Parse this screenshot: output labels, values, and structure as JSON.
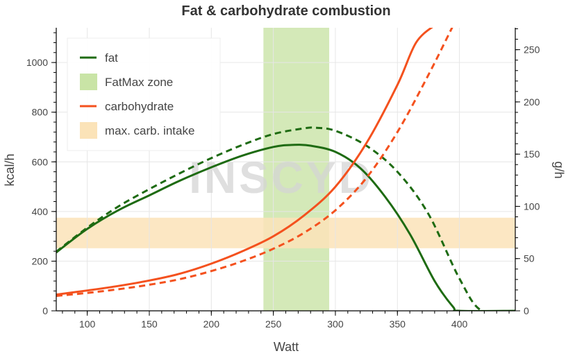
{
  "chart_data": {
    "type": "line",
    "title": "Fat & carbohydrate combustion",
    "xlabel": "Watt",
    "ylabel_left": "kcal/h",
    "ylabel_right": "g/h",
    "xlim": [
      75,
      445
    ],
    "ylim_left": [
      0,
      1140
    ],
    "ylim_right": [
      0,
      271
    ],
    "x_ticks": [
      100,
      150,
      200,
      250,
      300,
      350,
      400
    ],
    "y_ticks_left": [
      0,
      200,
      400,
      600,
      800,
      1000
    ],
    "y_ticks_right": [
      0,
      50,
      100,
      150,
      200,
      250
    ],
    "grid": true,
    "legend_position": "top-left",
    "watermark": "INSCYD",
    "legend": [
      {
        "label": "fat",
        "kind": "line",
        "color": "#1e6b12"
      },
      {
        "label": "FatMax zone",
        "kind": "band",
        "color": "#c9e4a6"
      },
      {
        "label": "carbohydrate",
        "kind": "line",
        "color": "#f4511e"
      },
      {
        "label": "max. carb. intake",
        "kind": "band",
        "color": "#fbe3b8"
      }
    ],
    "series": [
      {
        "name": "fat",
        "style": "solid",
        "color": "#1e6b12",
        "x": [
          75,
          100,
          125,
          150,
          175,
          200,
          225,
          250,
          265,
          280,
          300,
          320,
          340,
          360,
          380,
          395,
          400,
          445
        ],
        "y": [
          235,
          330,
          405,
          465,
          525,
          578,
          625,
          660,
          668,
          665,
          640,
          575,
          460,
          310,
          120,
          15,
          0,
          0
        ]
      },
      {
        "name": "fat (dashed)",
        "style": "dashed",
        "color": "#1e6b12",
        "x": [
          75,
          100,
          125,
          150,
          175,
          200,
          225,
          250,
          275,
          285,
          300,
          325,
          350,
          375,
          400,
          418,
          445
        ],
        "y": [
          238,
          335,
          420,
          490,
          555,
          615,
          668,
          712,
          735,
          737,
          725,
          665,
          560,
          390,
          130,
          0,
          0
        ]
      },
      {
        "name": "carbohydrate",
        "style": "solid",
        "color": "#f4511e",
        "x": [
          75,
          100,
          125,
          150,
          175,
          200,
          225,
          250,
          275,
          300,
          325,
          350,
          365,
          380
        ],
        "y": [
          65,
          82,
          100,
          122,
          150,
          190,
          240,
          300,
          385,
          500,
          675,
          910,
          1080,
          1150
        ]
      },
      {
        "name": "carbohydrate (dashed)",
        "style": "dashed",
        "color": "#f4511e",
        "x": [
          75,
          100,
          125,
          150,
          175,
          200,
          225,
          250,
          275,
          300,
          325,
          350,
          375,
          395
        ],
        "y": [
          60,
          72,
          87,
          105,
          128,
          160,
          200,
          250,
          315,
          405,
          535,
          720,
          950,
          1150
        ]
      }
    ],
    "bands": [
      {
        "name": "FatMax zone",
        "orientation": "vertical",
        "x_range": [
          242,
          295
        ],
        "color": "#c9e4a6"
      },
      {
        "name": "max. carb. intake",
        "orientation": "horizontal",
        "y_range": [
          252,
          375
        ],
        "color": "#fbe3b8"
      }
    ]
  }
}
